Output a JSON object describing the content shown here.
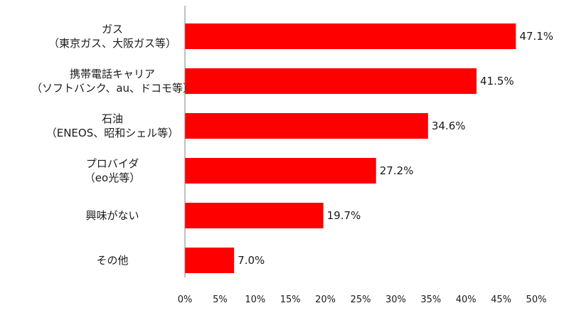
{
  "chart_data": {
    "type": "bar",
    "orientation": "horizontal",
    "categories": [
      [
        "ガス",
        "（東京ガス、大阪ガス等）"
      ],
      [
        "携帯電話キャリア",
        "（ソフトバンク、au、ドコモ等）"
      ],
      [
        "石油",
        "（ENEOS、昭和シェル等）"
      ],
      [
        "プロバイダ",
        "（eo光等）"
      ],
      [
        "興味がない"
      ],
      [
        "その他"
      ]
    ],
    "values": [
      47.1,
      41.5,
      34.6,
      27.2,
      19.7,
      7.0
    ],
    "value_labels": [
      "47.1%",
      "41.5%",
      "34.6%",
      "27.2%",
      "19.7%",
      "7.0%"
    ],
    "xlim": [
      0,
      50
    ],
    "x_ticks": [
      "0%",
      "5%",
      "10%",
      "15%",
      "20%",
      "25%",
      "30%",
      "35%",
      "40%",
      "45%",
      "50%"
    ],
    "bar_color": "#ff0000",
    "grid": false,
    "title": "",
    "xlabel": "",
    "ylabel": ""
  }
}
